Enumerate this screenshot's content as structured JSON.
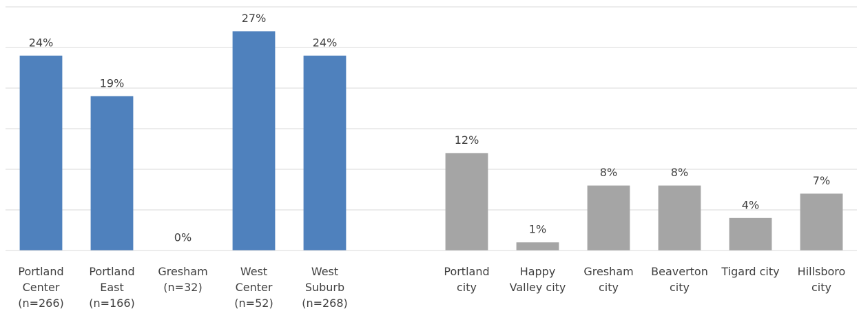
{
  "chart_data": {
    "type": "bar",
    "categories": [
      "Portland\nCenter\n(n=266)",
      "Portland\nEast\n(n=166)",
      "Gresham\n(n=32)",
      "West\nCenter\n(n=52)",
      "West\nSuburb\n(n=268)",
      null,
      "Portland\ncity",
      "Happy\nValley city",
      "Gresham\ncity",
      "Beaverton\ncity",
      "Tigard city",
      "Hillsboro\ncity"
    ],
    "values": [
      24,
      19,
      0,
      27,
      24,
      null,
      12,
      1,
      8,
      8,
      4,
      7
    ],
    "value_labels": [
      "24%",
      "19%",
      "0%",
      "27%",
      "24%",
      null,
      "12%",
      "1%",
      "8%",
      "8%",
      "4%",
      "7%"
    ],
    "colors": [
      "#4f81bd",
      "#4f81bd",
      "#4f81bd",
      "#4f81bd",
      "#4f81bd",
      null,
      "#a5a5a5",
      "#a5a5a5",
      "#a5a5a5",
      "#a5a5a5",
      "#a5a5a5",
      "#a5a5a5"
    ],
    "ylim": [
      0,
      30
    ],
    "yticks": [
      0,
      5,
      10,
      15,
      20,
      25,
      30
    ],
    "grid": true
  }
}
